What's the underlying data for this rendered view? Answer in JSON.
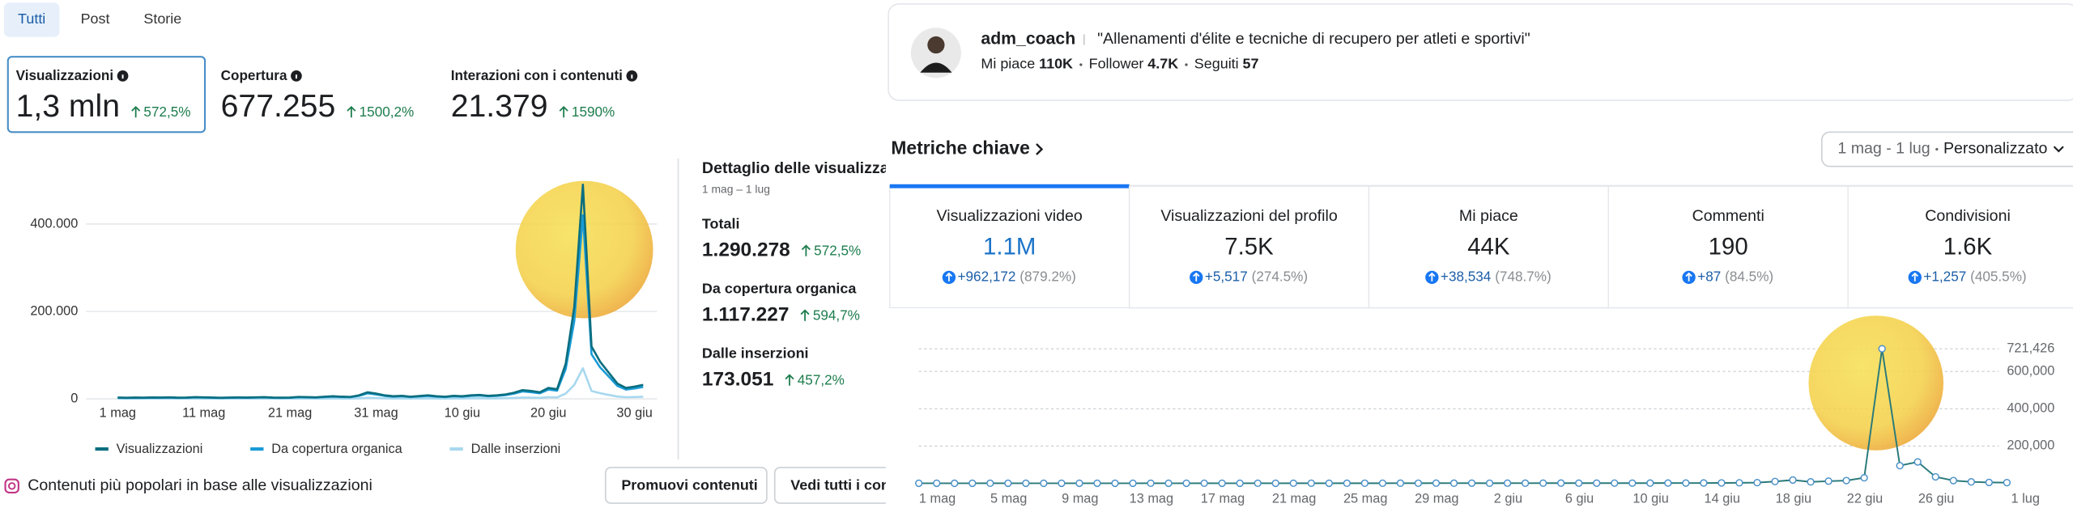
{
  "tabs": [
    "Tutti",
    "Post",
    "Storie"
  ],
  "summary": [
    {
      "label": "Visualizzazioni",
      "value": "1,3 mln",
      "change": "572,5%"
    },
    {
      "label": "Copertura",
      "value": "677.255",
      "change": "1500,2%"
    },
    {
      "label": "Interazioni con i contenuti",
      "value": "21.379",
      "change": "1590%"
    }
  ],
  "views_chart": {
    "type": "line",
    "ylim": [
      0,
      550000
    ],
    "yticks": [
      0,
      {
        "value": 200000,
        "label": "200.000"
      },
      {
        "value": 400000,
        "label": "400.000"
      }
    ],
    "grid": true,
    "categories": [
      "1 mag",
      null,
      null,
      null,
      null,
      null,
      null,
      null,
      null,
      null,
      "11 mag",
      null,
      null,
      null,
      null,
      null,
      null,
      null,
      null,
      null,
      "21 mag",
      null,
      null,
      null,
      null,
      null,
      null,
      null,
      null,
      null,
      "31 mag",
      null,
      null,
      null,
      null,
      null,
      null,
      null,
      null,
      null,
      "10 giu",
      null,
      null,
      null,
      null,
      null,
      null,
      null,
      null,
      null,
      "20 giu",
      null,
      null,
      null,
      null,
      null,
      null,
      null,
      null,
      null,
      "30 giu",
      null
    ],
    "series": [
      {
        "name": "Visualizzazioni",
        "color": "#0b6e7f",
        "values": [
          3000,
          2500,
          3000,
          2800,
          3200,
          3000,
          3500,
          2800,
          3000,
          4000,
          3500,
          3000,
          2500,
          3000,
          3200,
          3000,
          3500,
          4000,
          3000,
          2800,
          3000,
          4500,
          4000,
          3500,
          5000,
          6000,
          5000,
          4500,
          8000,
          15000,
          12000,
          8000,
          6000,
          7000,
          5000,
          6500,
          8000,
          6000,
          5000,
          7000,
          6000,
          8000,
          9000,
          7000,
          8000,
          10000,
          14000,
          20000,
          18000,
          15000,
          25000,
          22000,
          80000,
          210000,
          490000,
          120000,
          85000,
          60000,
          35000,
          25000,
          28000,
          32000
        ]
      },
      {
        "name": "Da copertura organica",
        "color": "#1a9bd7",
        "values": [
          2500,
          2100,
          2500,
          2400,
          2700,
          2500,
          3000,
          2400,
          2500,
          3400,
          3000,
          2500,
          2100,
          2500,
          2700,
          2500,
          3000,
          3400,
          2500,
          2400,
          2500,
          3800,
          3400,
          3000,
          4200,
          5100,
          4200,
          3800,
          6800,
          12700,
          10200,
          6800,
          5100,
          6000,
          4200,
          5500,
          6800,
          5100,
          4200,
          6000,
          5100,
          6800,
          7600,
          6000,
          6800,
          8500,
          11900,
          17000,
          15300,
          12700,
          21200,
          18700,
          68000,
          178000,
          420000,
          102000,
          72000,
          51000,
          29700,
          21200,
          23800,
          27200
        ]
      },
      {
        "name": "Dalle inserzioni",
        "color": "#a8d8ef",
        "values": [
          500,
          400,
          500,
          400,
          500,
          500,
          500,
          400,
          500,
          600,
          500,
          500,
          400,
          500,
          500,
          500,
          500,
          600,
          500,
          400,
          500,
          700,
          600,
          500,
          800,
          900,
          800,
          700,
          1200,
          2300,
          1800,
          1200,
          900,
          1000,
          800,
          1000,
          1200,
          900,
          800,
          1000,
          900,
          1200,
          1400,
          1000,
          1200,
          1500,
          2100,
          3000,
          2700,
          2300,
          3800,
          3300,
          12000,
          32000,
          70000,
          18000,
          13000,
          9000,
          5300,
          3800,
          4200,
          4800
        ]
      }
    ]
  },
  "breakdown": {
    "title": "Dettaglio delle visualizzazioni",
    "period": "1 mag – 1 lug",
    "items": [
      {
        "label": "Totali",
        "value": "1.290.278",
        "change": "572,5%"
      },
      {
        "label": "Da copertura organica",
        "value": "1.117.227",
        "change": "594,7%"
      },
      {
        "label": "Dalle inserzioni",
        "value": "173.051",
        "change": "457,2%"
      }
    ]
  },
  "top_content": {
    "title": "Contenuti più popolari in base alle visualizzazioni",
    "buttons": [
      "Promuovi contenuti",
      "Vedi tutti i contenuti"
    ]
  },
  "profile": {
    "username": "adm_coach",
    "bio": "\"Allenamenti d'élite e tecniche di recupero per atleti e sportivi\"",
    "stats": [
      {
        "label": "Mi piace",
        "value": "110K"
      },
      {
        "label": "Follower",
        "value": "4.7K"
      },
      {
        "label": "Seguiti",
        "value": "57"
      }
    ]
  },
  "key_metrics": {
    "title": "Metriche chiave",
    "date_range": "1 mag - 1 lug",
    "date_mode": "Personalizzato",
    "cards": [
      {
        "label": "Visualizzazioni video",
        "value": "1.1M",
        "delta": "+962,172",
        "pct": "(879.2%)"
      },
      {
        "label": "Visualizzazioni del profilo",
        "value": "7.5K",
        "delta": "+5,517",
        "pct": "(274.5%)"
      },
      {
        "label": "Mi piace",
        "value": "44K",
        "delta": "+38,534",
        "pct": "(748.7%)"
      },
      {
        "label": "Commenti",
        "value": "190",
        "delta": "+87",
        "pct": "(84.5%)"
      },
      {
        "label": "Condivisioni",
        "value": "1.6K",
        "delta": "+1,257",
        "pct": "(405.5%)"
      }
    ]
  },
  "video_chart": {
    "type": "line",
    "ylim": [
      0,
      800000
    ],
    "yticks": [
      {
        "value": 200000,
        "label": "200,000"
      },
      {
        "value": 400000,
        "label": "400,000"
      },
      {
        "value": 600000,
        "label": "600,000"
      },
      {
        "value": 721426,
        "label": "721,426"
      }
    ],
    "grid": true,
    "color": "#2a7a7a",
    "categories": [
      "1 mag",
      null,
      null,
      null,
      "5 mag",
      null,
      null,
      null,
      "9 mag",
      null,
      null,
      null,
      "13 mag",
      null,
      null,
      null,
      "17 mag",
      null,
      null,
      null,
      "21 mag",
      null,
      null,
      null,
      "25 mag",
      null,
      null,
      null,
      "29 mag",
      null,
      null,
      null,
      "2 giu",
      null,
      null,
      null,
      "6 giu",
      null,
      null,
      null,
      "10 giu",
      null,
      null,
      null,
      "14 giu",
      null,
      null,
      null,
      "18 giu",
      null,
      null,
      null,
      "22 giu",
      null,
      null,
      null,
      "26 giu",
      null,
      null,
      null,
      null,
      "1 lug"
    ],
    "values": [
      500,
      600,
      400,
      500,
      700,
      600,
      500,
      400,
      600,
      500,
      500,
      600,
      500,
      700,
      500,
      600,
      800,
      500,
      600,
      700,
      600,
      700,
      800,
      600,
      700,
      900,
      800,
      1000,
      900,
      1200,
      1000,
      1100,
      900,
      1200,
      1000,
      1300,
      1500,
      1200,
      1100,
      1400,
      1300,
      1500,
      1800,
      1600,
      2000,
      2500,
      3000,
      4000,
      10000,
      18000,
      8000,
      12000,
      15000,
      30000,
      721426,
      95000,
      115000,
      35000,
      15000,
      8000,
      5000,
      4000
    ]
  }
}
